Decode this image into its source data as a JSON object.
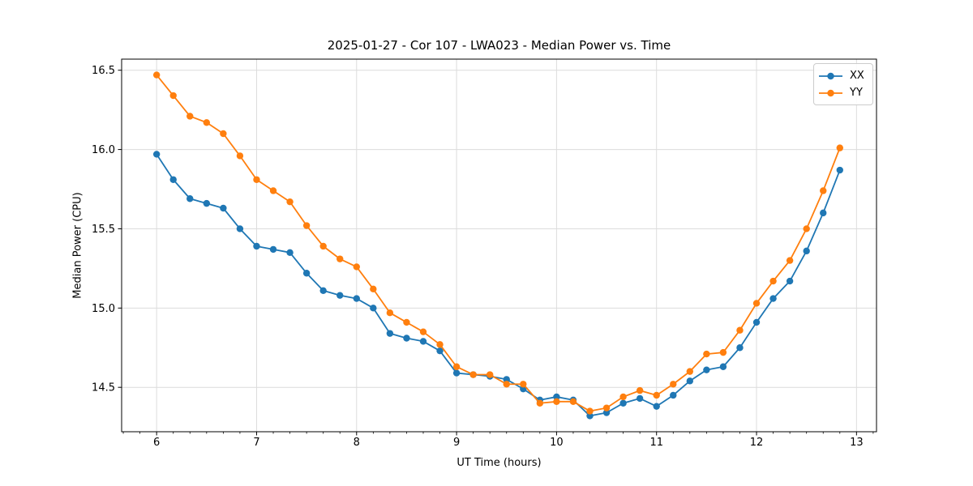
{
  "figure": {
    "background": "#ffffff"
  },
  "chart_data": {
    "type": "line",
    "title": "2025-01-27 - Cor 107 - LWA023 - Median Power vs. Time",
    "xlabel": "UT Time (hours)",
    "ylabel": "Median Power (CPU)",
    "grid": true,
    "grid_color": "#dcdcdc",
    "legend_position": "upper right",
    "xlim": [
      5.65,
      13.2
    ],
    "ylim": [
      14.22,
      16.57
    ],
    "xticks": [
      6,
      7,
      8,
      9,
      10,
      11,
      12,
      13
    ],
    "xtick_labels": [
      "6",
      "7",
      "8",
      "9",
      "10",
      "11",
      "12",
      "13"
    ],
    "x_minor_tick_step": 0.166667,
    "yticks": [
      14.5,
      15.0,
      15.5,
      16.0,
      16.5
    ],
    "ytick_labels": [
      "14.5",
      "15.0",
      "15.5",
      "16.0",
      "16.5"
    ],
    "x": [
      6.0,
      6.1667,
      6.3333,
      6.5,
      6.6667,
      6.8333,
      7.0,
      7.1667,
      7.3333,
      7.5,
      7.6667,
      7.8333,
      8.0,
      8.1667,
      8.3333,
      8.5,
      8.6667,
      8.8333,
      9.0,
      9.1667,
      9.3333,
      9.5,
      9.6667,
      9.8333,
      10.0,
      10.1667,
      10.3333,
      10.5,
      10.6667,
      10.8333,
      11.0,
      11.1667,
      11.3333,
      11.5,
      11.6667,
      11.8333,
      12.0,
      12.1667,
      12.3333,
      12.5,
      12.6667,
      12.8333
    ],
    "series": [
      {
        "name": "XX",
        "color": "#1f77b4",
        "values": [
          15.97,
          15.81,
          15.69,
          15.66,
          15.63,
          15.5,
          15.39,
          15.37,
          15.35,
          15.22,
          15.11,
          15.08,
          15.06,
          15.0,
          14.84,
          14.81,
          14.79,
          14.73,
          14.59,
          14.58,
          14.57,
          14.55,
          14.49,
          14.42,
          14.44,
          14.42,
          14.32,
          14.34,
          14.4,
          14.43,
          14.38,
          14.45,
          14.54,
          14.61,
          14.63,
          14.75,
          14.91,
          15.06,
          15.17,
          15.36,
          15.6,
          15.87
        ]
      },
      {
        "name": "YY",
        "color": "#ff7f0e",
        "values": [
          16.47,
          16.34,
          16.21,
          16.17,
          16.1,
          15.96,
          15.81,
          15.74,
          15.67,
          15.52,
          15.39,
          15.31,
          15.26,
          15.12,
          14.97,
          14.91,
          14.85,
          14.77,
          14.63,
          14.58,
          14.58,
          14.52,
          14.52,
          14.4,
          14.41,
          14.41,
          14.35,
          14.37,
          14.44,
          14.48,
          14.45,
          14.52,
          14.6,
          14.71,
          14.72,
          14.86,
          15.03,
          15.17,
          15.3,
          15.5,
          15.74,
          16.01
        ]
      }
    ]
  }
}
